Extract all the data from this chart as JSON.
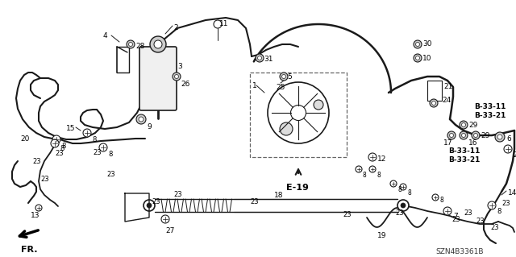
{
  "bg_color": "#ffffff",
  "line_color": "#1a1a1a",
  "text_color": "#000000",
  "diagram_code": "SZN4B3361B",
  "e19_label": "E-19",
  "fr_label": "FR.",
  "b3311": "B-33-11",
  "b3321": "B-33-21",
  "figsize": [
    6.4,
    3.19
  ],
  "dpi": 100
}
